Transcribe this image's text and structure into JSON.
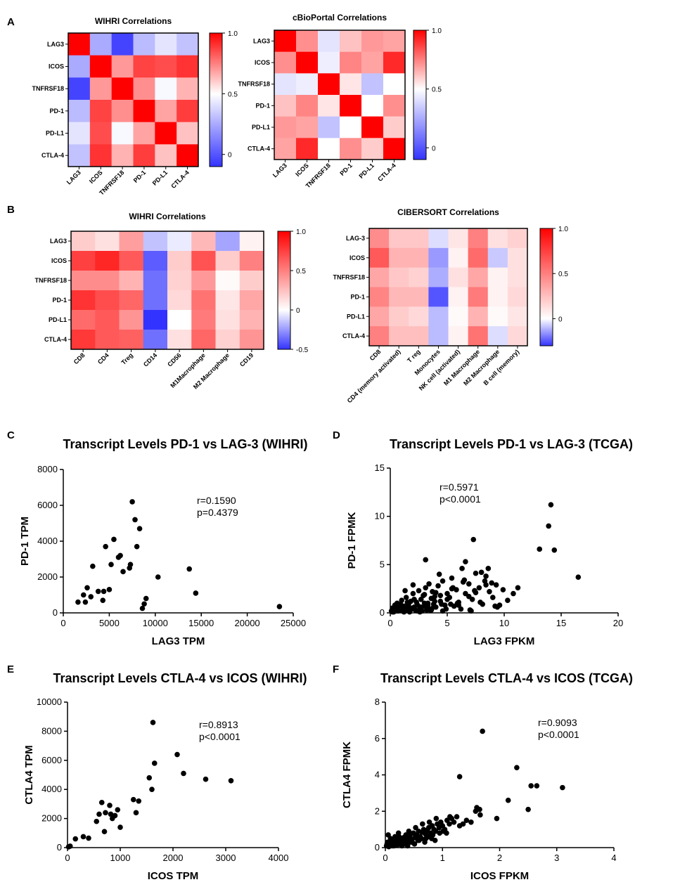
{
  "panels": {
    "A": "A",
    "B": "B",
    "C": "C",
    "D": "D",
    "E": "E",
    "F": "F"
  },
  "colors": {
    "high": "#ff0000",
    "mid": "#ffffff",
    "low": "#3333ff",
    "marker": "#000000"
  },
  "chart_data": [
    {
      "id": "A1",
      "type": "heatmap",
      "title": "WIHRI  Correlations",
      "rows": [
        "LAG3",
        "ICOS",
        "TNFRSF18",
        "PD-1",
        "PD-L1",
        "CTLA-4"
      ],
      "cols": [
        "LAG3",
        "ICOS",
        "TNFRSF18",
        "PD-1",
        "PD-L1",
        "CTLA-4"
      ],
      "values": [
        [
          1.0,
          0.25,
          -0.05,
          0.3,
          0.42,
          0.32
        ],
        [
          0.25,
          1.0,
          0.7,
          0.87,
          0.85,
          0.9
        ],
        [
          -0.05,
          0.7,
          1.0,
          0.72,
          0.48,
          0.65
        ],
        [
          0.3,
          0.87,
          0.72,
          1.0,
          0.68,
          0.88
        ],
        [
          0.42,
          0.85,
          0.48,
          0.68,
          1.0,
          0.62
        ],
        [
          0.32,
          0.9,
          0.65,
          0.88,
          0.62,
          1.0
        ]
      ],
      "zmin": -0.1,
      "zmid": 0.5,
      "zmax": 1.0,
      "colorbar_ticks": [
        {
          "value": 1.0,
          "label": "1.0"
        },
        {
          "value": 0.5,
          "label": "0.5"
        },
        {
          "value": 0,
          "label": "0"
        }
      ]
    },
    {
      "id": "A2",
      "type": "heatmap",
      "title": "cBioPortal Correlations",
      "rows": [
        "LAG3",
        "ICOS",
        "TNFRSF18",
        "PD-1",
        "PD-L1",
        "CTLA-4"
      ],
      "cols": [
        "LAG3",
        "ICOS",
        "TNFRSF18",
        "PD-1",
        "PD-L1",
        "CTLA-4"
      ],
      "values": [
        [
          1.0,
          0.72,
          0.42,
          0.62,
          0.7,
          0.68
        ],
        [
          0.72,
          1.0,
          0.45,
          0.74,
          0.68,
          0.92
        ],
        [
          0.42,
          0.45,
          1.0,
          0.55,
          0.32,
          0.5
        ],
        [
          0.62,
          0.74,
          0.55,
          1.0,
          0.5,
          0.72
        ],
        [
          0.7,
          0.68,
          0.32,
          0.5,
          1.0,
          0.6
        ],
        [
          0.68,
          0.92,
          0.5,
          0.72,
          0.6,
          1.0
        ]
      ],
      "zmin": -0.1,
      "zmid": 0.5,
      "zmax": 1.0,
      "colorbar_ticks": [
        {
          "value": 1.0,
          "label": "1.0"
        },
        {
          "value": 0.5,
          "label": "0.5"
        },
        {
          "value": 0,
          "label": "0"
        }
      ]
    },
    {
      "id": "B1",
      "type": "heatmap",
      "title": "WIHRI  Correlations",
      "rows": [
        "LAG3",
        "ICOS",
        "TNFRSF18",
        "PD-1",
        "PD-L1",
        "CTLA-4"
      ],
      "cols": [
        "CD8",
        "CD4",
        "Treg",
        "CD14",
        "CD56",
        "M1Macrophage",
        "M2 Macrophage",
        "CD19"
      ],
      "values": [
        [
          0.2,
          0.12,
          0.38,
          -0.15,
          -0.05,
          0.28,
          -0.22,
          0.05
        ],
        [
          0.75,
          0.85,
          0.65,
          -0.4,
          0.2,
          0.68,
          0.2,
          0.5
        ],
        [
          0.45,
          0.45,
          0.3,
          -0.35,
          0.18,
          0.4,
          0.02,
          0.2
        ],
        [
          0.8,
          0.7,
          0.6,
          -0.35,
          0.15,
          0.55,
          0.1,
          0.35
        ],
        [
          0.58,
          0.65,
          0.42,
          -0.5,
          0.0,
          0.52,
          0.12,
          0.3
        ],
        [
          0.78,
          0.65,
          0.62,
          -0.35,
          0.12,
          0.6,
          0.18,
          0.42
        ]
      ],
      "zmin": -0.5,
      "zmid": 0,
      "zmax": 1.0,
      "colorbar_ticks": [
        {
          "value": 1.0,
          "label": "1.0"
        },
        {
          "value": 0.5,
          "label": "0.5"
        },
        {
          "value": 0,
          "label": "0"
        },
        {
          "value": -0.5,
          "label": "-0.5"
        }
      ]
    },
    {
      "id": "B2",
      "type": "heatmap",
      "title": "CIBERSORT Correlations",
      "rows": [
        "LAG-3",
        "ICOS",
        "TNFRSF18",
        "PD-1",
        "PD-L1",
        "CTLA-4"
      ],
      "cols": [
        "CD8",
        "CD4 (memory activated)",
        "T reg",
        "Monocytes",
        "NK cell (activated)",
        "M1 Macrophage",
        "M2 Macrophage",
        "B cell (memory)"
      ],
      "values": [
        [
          0.45,
          0.22,
          0.22,
          -0.05,
          0.1,
          0.5,
          0.12,
          0.18
        ],
        [
          0.65,
          0.3,
          0.3,
          -0.15,
          0.05,
          0.58,
          -0.08,
          0.12
        ],
        [
          0.35,
          0.22,
          0.18,
          -0.12,
          0.12,
          0.35,
          0.05,
          0.12
        ],
        [
          0.48,
          0.28,
          0.28,
          -0.25,
          0.05,
          0.52,
          0.05,
          0.15
        ],
        [
          0.35,
          0.2,
          0.15,
          -0.1,
          0.02,
          0.3,
          0.02,
          0.1
        ],
        [
          0.5,
          0.25,
          0.25,
          -0.1,
          0.05,
          0.55,
          -0.05,
          0.15
        ]
      ],
      "zmin": -0.3,
      "zmid": 0,
      "zmax": 1.0,
      "colorbar_ticks": [
        {
          "value": 1.0,
          "label": "1.0"
        },
        {
          "value": 0.5,
          "label": "0.5"
        },
        {
          "value": 0,
          "label": "0"
        }
      ]
    },
    {
      "id": "C",
      "type": "scatter",
      "title": "Transcript Levels PD-1 vs LAG-3 (WIHRI)",
      "xlabel": "LAG3 TPM",
      "ylabel": "PD-1 TPM",
      "xlim": [
        0,
        25000
      ],
      "ylim": [
        0,
        8000
      ],
      "xticks": [
        {
          "value": 0,
          "label": "0"
        },
        {
          "value": 5000,
          "label": "5000"
        },
        {
          "value": 10000,
          "label": "10000"
        },
        {
          "value": 15000,
          "label": "15000"
        },
        {
          "value": 20000,
          "label": "20000"
        },
        {
          "value": 25000,
          "label": "25000"
        }
      ],
      "yticks": [
        {
          "value": 0,
          "label": "0"
        },
        {
          "value": 2000,
          "label": "2000"
        },
        {
          "value": 4000,
          "label": "4000"
        },
        {
          "value": 6000,
          "label": "6000"
        },
        {
          "value": 8000,
          "label": "8000"
        }
      ],
      "annotation": [
        "r=0.1590",
        "p=0.4379"
      ],
      "x": [
        1600,
        2200,
        2400,
        2600,
        3000,
        3200,
        3800,
        4300,
        4400,
        4600,
        5000,
        5200,
        5500,
        6000,
        6200,
        6500,
        7200,
        7300,
        7500,
        7800,
        8000,
        8300,
        8600,
        8800,
        9000,
        10300,
        13700,
        14400,
        23500
      ],
      "y": [
        600,
        1000,
        600,
        1400,
        900,
        2600,
        1200,
        700,
        1200,
        3700,
        1300,
        2700,
        4100,
        3100,
        3200,
        2300,
        2500,
        2700,
        6200,
        5200,
        3700,
        4700,
        250,
        500,
        800,
        2000,
        2450,
        1100,
        350
      ]
    },
    {
      "id": "D",
      "type": "scatter",
      "title": "Transcript Levels PD-1 vs LAG-3 (TCGA)",
      "xlabel": "LAG3 FPKM",
      "ylabel": "PD-1 FPMK",
      "xlim": [
        0,
        20
      ],
      "ylim": [
        0,
        15
      ],
      "xticks": [
        {
          "value": 0,
          "label": "0"
        },
        {
          "value": 5,
          "label": "5"
        },
        {
          "value": 10,
          "label": "10"
        },
        {
          "value": 15,
          "label": "15"
        },
        {
          "value": 20,
          "label": "20"
        }
      ],
      "yticks": [
        {
          "value": 0,
          "label": "0"
        },
        {
          "value": 5,
          "label": "5"
        },
        {
          "value": 10,
          "label": "10"
        },
        {
          "value": 15,
          "label": "15"
        }
      ],
      "annotation": [
        "r=0.5971",
        "p<0.0001"
      ],
      "x": [
        0.1,
        0.2,
        0.3,
        0.4,
        0.5,
        0.6,
        0.7,
        0.8,
        0.9,
        1.0,
        1.1,
        1.2,
        1.3,
        1.4,
        1.5,
        1.6,
        1.7,
        1.8,
        1.9,
        2.0,
        2.1,
        2.2,
        2.3,
        2.4,
        2.5,
        2.6,
        2.7,
        2.8,
        2.9,
        3.0,
        3.1,
        3.2,
        3.3,
        3.4,
        3.5,
        3.6,
        3.7,
        3.8,
        3.9,
        4.0,
        4.2,
        4.4,
        4.6,
        4.8,
        5.0,
        5.2,
        5.4,
        5.6,
        5.8,
        6.0,
        6.3,
        6.6,
        6.9,
        7.2,
        7.5,
        7.8,
        8.1,
        8.4,
        8.7,
        9.0,
        9.3,
        9.6,
        9.9,
        10.3,
        10.8,
        11.2,
        0.3,
        0.6,
        0.9,
        1.2,
        1.5,
        1.8,
        2.1,
        2.4,
        2.7,
        3.0,
        3.3,
        3.6,
        3.9,
        4.4,
        4.9,
        5.4,
        5.9,
        6.4,
        6.9,
        7.4,
        7.9,
        8.4,
        8.9,
        9.4,
        0.5,
        1.0,
        1.5,
        2.0,
        2.5,
        3.0,
        3.5,
        4.0,
        4.5,
        5.0,
        5.5,
        6.0,
        6.5,
        7.0,
        7.5,
        8.0,
        0.2,
        0.7,
        1.3,
        1.9,
        2.6,
        3.2,
        3.8,
        4.6,
        5.3,
        6.2,
        7.1,
        8.3,
        9.2,
        3.1,
        4.3,
        6.6,
        7.3,
        8.6,
        13.1,
        13.9,
        14.1,
        14.4,
        16.5
      ],
      "y": [
        0.2,
        0.5,
        0.1,
        0.8,
        0.3,
        1.0,
        0.2,
        0.6,
        0.4,
        1.3,
        0.2,
        0.7,
        0.5,
        1.6,
        0.3,
        0.9,
        0.1,
        1.2,
        0.4,
        2.0,
        0.6,
        0.3,
        1.1,
        0.8,
        2.3,
        0.4,
        1.4,
        0.2,
        1.8,
        0.7,
        2.6,
        0.5,
        1.0,
        3.0,
        0.3,
        1.5,
        2.2,
        0.9,
        1.7,
        0.6,
        2.8,
        1.2,
        3.3,
        0.8,
        2.0,
        1.6,
        3.6,
        0.7,
        2.4,
        1.1,
        4.6,
        2.0,
        3.0,
        1.4,
        4.1,
        2.6,
        0.9,
        3.8,
        2.2,
        1.6,
        2.9,
        0.8,
        2.4,
        1.3,
        2.0,
        2.6,
        0.4,
        0.2,
        0.9,
        0.1,
        1.1,
        0.5,
        1.4,
        0.2,
        0.6,
        1.9,
        0.8,
        0.3,
        1.2,
        1.8,
        0.4,
        2.5,
        1.0,
        3.2,
        1.7,
        2.3,
        1.1,
        2.9,
        3.1,
        0.6,
        0.7,
        0.3,
        0.5,
        2.9,
        0.2,
        1.0,
        0.4,
        2.1,
        0.9,
        1.4,
        2.6,
        0.8,
        3.4,
        0.3,
        2.1,
        4.2,
        0.1,
        0.3,
        2.3,
        0.4,
        0.1,
        0.3,
        0.6,
        0.2,
        0.9,
        0.4,
        0.2,
        3.3,
        0.7,
        5.5,
        4.0,
        5.3,
        7.6,
        4.6,
        6.6,
        9.0,
        11.2,
        6.5,
        3.7
      ]
    },
    {
      "id": "E",
      "type": "scatter",
      "title": "Transcript Levels CTLA-4 vs ICOS (WIHRI)",
      "xlabel": "ICOS TPM",
      "ylabel": "CTLA4 TPM",
      "xlim": [
        0,
        4000
      ],
      "ylim": [
        0,
        10000
      ],
      "xticks": [
        {
          "value": 0,
          "label": "0"
        },
        {
          "value": 1000,
          "label": "1000"
        },
        {
          "value": 2000,
          "label": "2000"
        },
        {
          "value": 3000,
          "label": "3000"
        },
        {
          "value": 4000,
          "label": "4000"
        }
      ],
      "yticks": [
        {
          "value": 0,
          "label": "0"
        },
        {
          "value": 2000,
          "label": "2000"
        },
        {
          "value": 4000,
          "label": "4000"
        },
        {
          "value": 6000,
          "label": "6000"
        },
        {
          "value": 8000,
          "label": "8000"
        },
        {
          "value": 10000,
          "label": "10000"
        }
      ],
      "annotation": [
        "r=0.8913",
        "p<0.0001"
      ],
      "x": [
        20,
        50,
        150,
        300,
        400,
        550,
        600,
        650,
        700,
        720,
        800,
        820,
        850,
        900,
        950,
        1000,
        1250,
        1300,
        1350,
        1550,
        1600,
        1620,
        1650,
        2080,
        2200,
        2620,
        3100
      ],
      "y": [
        50,
        100,
        600,
        750,
        650,
        1800,
        2300,
        3100,
        1100,
        2400,
        2900,
        2300,
        2000,
        2200,
        2600,
        1400,
        3300,
        2400,
        3200,
        4800,
        4000,
        8600,
        5800,
        6400,
        5100,
        4700,
        4600
      ]
    },
    {
      "id": "F",
      "type": "scatter",
      "title": "Transcript Levels CTLA-4 vs ICOS (TCGA)",
      "xlabel": "ICOS FPKM",
      "ylabel": "CTLA4 FPMK",
      "xlim": [
        0,
        4
      ],
      "ylim": [
        0,
        8
      ],
      "xticks": [
        {
          "value": 0,
          "label": "0"
        },
        {
          "value": 1,
          "label": "1"
        },
        {
          "value": 2,
          "label": "2"
        },
        {
          "value": 3,
          "label": "3"
        },
        {
          "value": 4,
          "label": "4"
        }
      ],
      "yticks": [
        {
          "value": 0,
          "label": "0"
        },
        {
          "value": 2,
          "label": "2"
        },
        {
          "value": 4,
          "label": "4"
        },
        {
          "value": 6,
          "label": "6"
        },
        {
          "value": 8,
          "label": "8"
        }
      ],
      "annotation": [
        "r=0.9093",
        "p<0.0001"
      ],
      "x": [
        0.02,
        0.04,
        0.06,
        0.08,
        0.1,
        0.12,
        0.14,
        0.16,
        0.18,
        0.2,
        0.22,
        0.24,
        0.26,
        0.28,
        0.3,
        0.32,
        0.34,
        0.36,
        0.38,
        0.4,
        0.43,
        0.46,
        0.49,
        0.52,
        0.55,
        0.58,
        0.61,
        0.64,
        0.67,
        0.7,
        0.73,
        0.76,
        0.79,
        0.82,
        0.85,
        0.88,
        0.91,
        0.94,
        0.97,
        1.0,
        1.04,
        1.08,
        1.12,
        1.16,
        1.2,
        1.25,
        1.3,
        1.36,
        1.42,
        1.5,
        1.58,
        1.66,
        0.05,
        0.11,
        0.17,
        0.23,
        0.29,
        0.35,
        0.41,
        0.47,
        0.53,
        0.59,
        0.65,
        0.71,
        0.77,
        0.83,
        0.89,
        0.95,
        1.01,
        1.07,
        1.13,
        0.03,
        0.09,
        0.15,
        0.21,
        0.27,
        0.33,
        0.39,
        0.45,
        0.51,
        0.57,
        0.63,
        0.69,
        0.75,
        0.81,
        0.87,
        1.3,
        1.6,
        1.65,
        1.7,
        1.95,
        2.15,
        2.3,
        2.5,
        2.55,
        2.65,
        3.1
      ],
      "y": [
        0.1,
        0.3,
        0.05,
        0.2,
        0.4,
        0.1,
        0.3,
        0.15,
        0.5,
        0.2,
        0.35,
        0.6,
        0.25,
        0.45,
        0.3,
        0.55,
        0.4,
        0.7,
        0.35,
        0.5,
        0.65,
        0.45,
        0.8,
        0.55,
        0.7,
        0.9,
        0.6,
        0.85,
        1.0,
        0.75,
        0.95,
        1.1,
        0.8,
        1.2,
        1.0,
        0.9,
        1.3,
        1.1,
        1.4,
        1.2,
        1.0,
        1.5,
        1.3,
        1.6,
        1.4,
        1.7,
        1.2,
        1.3,
        1.5,
        1.4,
        2.0,
        1.8,
        0.7,
        0.2,
        0.6,
        0.8,
        0.1,
        0.2,
        0.9,
        0.3,
        1.1,
        0.4,
        1.3,
        0.5,
        1.4,
        0.7,
        1.6,
        0.8,
        0.9,
        0.8,
        1.7,
        0.2,
        0.5,
        0.1,
        0.15,
        0.3,
        0.2,
        0.1,
        0.3,
        0.2,
        0.4,
        0.5,
        0.3,
        0.6,
        0.5,
        0.4,
        3.9,
        2.2,
        2.1,
        6.4,
        1.6,
        2.6,
        4.4,
        2.1,
        3.4,
        3.4,
        3.3
      ]
    }
  ]
}
